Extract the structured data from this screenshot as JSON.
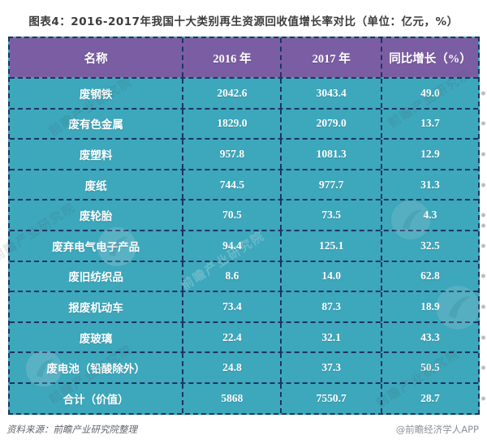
{
  "title": "图表4：2016-2017年我国十大类别再生资源回收值增长率对比（单位：亿元，%）",
  "table": {
    "columns": [
      "名称",
      "2016 年",
      "2017 年",
      "同比增长（%）"
    ],
    "rows": [
      [
        "废钢铁",
        "2042.6",
        "3043.4",
        "49.0"
      ],
      [
        "废有色金属",
        "1829.0",
        "2079.0",
        "13.7"
      ],
      [
        "废塑料",
        "957.8",
        "1081.3",
        "12.9"
      ],
      [
        "废纸",
        "744.5",
        "977.7",
        "31.3"
      ],
      [
        "废轮胎",
        "70.5",
        "73.5",
        "4.3"
      ],
      [
        "废弃电气电子产品",
        "94.4",
        "125.1",
        "32.5"
      ],
      [
        "废旧纺织品",
        "8.6",
        "14.0",
        "62.8"
      ],
      [
        "报废机动车",
        "73.4",
        "87.3",
        "18.9"
      ],
      [
        "废玻璃",
        "22.4",
        "32.1",
        "43.3"
      ],
      [
        "废电池（铅酸除外）",
        "24.8",
        "37.3",
        "50.5"
      ],
      [
        "合计（价值）",
        "5868",
        "7550.7",
        "28.7"
      ]
    ]
  },
  "footer": {
    "source": "资料来源：前瞻产业研究院整理",
    "brand": "@前瞻经济学人APP"
  },
  "watermark": {
    "text": "前瞻产业研究院"
  },
  "colors": {
    "header_bg": "#7b5da3",
    "row_bg": "#3da7bc",
    "border": "#1d3560",
    "cell_text": "#ffffff",
    "title_text": "#3d3d3d"
  },
  "chart_data": {
    "type": "table",
    "title": "图表4：2016-2017年我国十大类别再生资源回收值增长率对比（单位：亿元，%）",
    "unit": "亿元，%",
    "columns": [
      "名称",
      "2016 年",
      "2017 年",
      "同比增长（%）"
    ],
    "rows": [
      [
        "废钢铁",
        2042.6,
        3043.4,
        49.0
      ],
      [
        "废有色金属",
        1829.0,
        2079.0,
        13.7
      ],
      [
        "废塑料",
        957.8,
        1081.3,
        12.9
      ],
      [
        "废纸",
        744.5,
        977.7,
        31.3
      ],
      [
        "废轮胎",
        70.5,
        73.5,
        4.3
      ],
      [
        "废弃电气电子产品",
        94.4,
        125.1,
        32.5
      ],
      [
        "废旧纺织品",
        8.6,
        14.0,
        62.8
      ],
      [
        "报废机动车",
        73.4,
        87.3,
        18.9
      ],
      [
        "废玻璃",
        22.4,
        32.1,
        43.3
      ],
      [
        "废电池（铅酸除外）",
        24.8,
        37.3,
        50.5
      ],
      [
        "合计（价值）",
        5868,
        7550.7,
        28.7
      ]
    ],
    "source_note": "资料来源：前瞻产业研究院整理",
    "brand_note": "@前瞻经济学人APP"
  }
}
